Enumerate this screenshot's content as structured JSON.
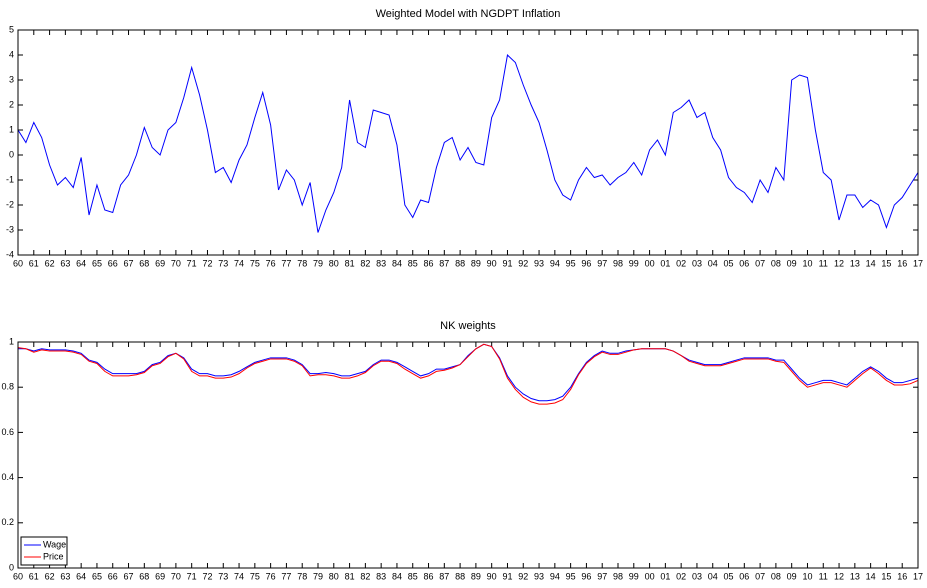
{
  "chart_data": [
    {
      "type": "line",
      "title": "Weighted Model with NGDPT Inflation",
      "color": "#0000ff",
      "x": [
        1960,
        1960.5,
        1961,
        1961.5,
        1962,
        1962.5,
        1963,
        1963.5,
        1964,
        1964.5,
        1965,
        1965.5,
        1966,
        1966.5,
        1967,
        1967.5,
        1968,
        1968.5,
        1969,
        1969.5,
        1970,
        1970.5,
        1971,
        1971.5,
        1972,
        1972.5,
        1973,
        1973.5,
        1974,
        1974.5,
        1975,
        1975.5,
        1976,
        1976.5,
        1977,
        1977.5,
        1978,
        1978.5,
        1979,
        1979.5,
        1980,
        1980.5,
        1981,
        1981.5,
        1982,
        1982.5,
        1983,
        1983.5,
        1984,
        1984.5,
        1985,
        1985.5,
        1986,
        1986.5,
        1987,
        1987.5,
        1988,
        1988.5,
        1989,
        1989.5,
        1990,
        1990.5,
        1991,
        1991.5,
        1992,
        1992.5,
        1993,
        1993.5,
        1994,
        1994.5,
        1995,
        1995.5,
        1996,
        1996.5,
        1997,
        1997.5,
        1998,
        1998.5,
        1999,
        1999.5,
        2000,
        2000.5,
        2001,
        2001.5,
        2002,
        2002.5,
        2003,
        2003.5,
        2004,
        2004.5,
        2005,
        2005.5,
        2006,
        2006.5,
        2007,
        2007.5,
        2008,
        2008.5,
        2009,
        2009.5,
        2010,
        2010.5,
        2011,
        2011.5,
        2012,
        2012.5,
        2013,
        2013.5,
        2014,
        2014.5,
        2015,
        2015.5,
        2016,
        2016.5,
        2017
      ],
      "values": [
        1.0,
        0.5,
        1.3,
        0.7,
        -0.4,
        -1.2,
        -0.9,
        -1.3,
        -0.1,
        -2.4,
        -1.2,
        -2.2,
        -2.3,
        -1.2,
        -0.8,
        0.0,
        1.1,
        0.3,
        0.0,
        1.0,
        1.3,
        2.3,
        3.5,
        2.4,
        1.0,
        -0.7,
        -0.5,
        -1.1,
        -0.2,
        0.4,
        1.5,
        2.5,
        1.2,
        -1.4,
        -0.6,
        -1.0,
        -2.0,
        -1.1,
        -3.1,
        -2.2,
        -1.5,
        -0.5,
        2.2,
        0.5,
        0.3,
        1.8,
        1.7,
        1.6,
        0.4,
        -2.0,
        -2.5,
        -1.8,
        -1.9,
        -0.5,
        0.5,
        0.7,
        -0.2,
        0.3,
        -0.3,
        -0.4,
        1.5,
        2.2,
        4.0,
        3.7,
        2.8,
        2.0,
        1.3,
        0.2,
        -1.0,
        -1.6,
        -1.8,
        -1.0,
        -0.5,
        -0.9,
        -0.8,
        -1.2,
        -0.9,
        -0.7,
        -0.3,
        -0.8,
        0.2,
        0.6,
        0.0,
        1.7,
        1.9,
        2.2,
        1.5,
        1.7,
        0.7,
        0.2,
        -0.9,
        -1.3,
        -1.5,
        -1.9,
        -1.0,
        -1.5,
        -0.5,
        -1.0,
        3.0,
        3.2,
        3.1,
        1.0,
        -0.7,
        -1.0,
        -2.6,
        -1.6,
        -1.6,
        -2.1,
        -1.8,
        -2.0,
        -2.9,
        -2.0,
        -1.7,
        -1.2,
        -0.7
      ],
      "xlim": [
        1960,
        2017
      ],
      "ylim": [
        -4,
        5
      ],
      "yticks": [
        -4,
        -3,
        -2,
        -1,
        0,
        1,
        2,
        3,
        4,
        5
      ],
      "xticks": [
        {
          "value": 1960,
          "label": "60"
        },
        {
          "value": 1961,
          "label": "61"
        },
        {
          "value": 1962,
          "label": "62"
        },
        {
          "value": 1963,
          "label": "63"
        },
        {
          "value": 1964,
          "label": "64"
        },
        {
          "value": 1965,
          "label": "65"
        },
        {
          "value": 1966,
          "label": "66"
        },
        {
          "value": 1967,
          "label": "67"
        },
        {
          "value": 1968,
          "label": "68"
        },
        {
          "value": 1969,
          "label": "69"
        },
        {
          "value": 1970,
          "label": "70"
        },
        {
          "value": 1971,
          "label": "71"
        },
        {
          "value": 1972,
          "label": "72"
        },
        {
          "value": 1973,
          "label": "73"
        },
        {
          "value": 1974,
          "label": "74"
        },
        {
          "value": 1975,
          "label": "75"
        },
        {
          "value": 1976,
          "label": "76"
        },
        {
          "value": 1977,
          "label": "77"
        },
        {
          "value": 1978,
          "label": "78"
        },
        {
          "value": 1979,
          "label": "79"
        },
        {
          "value": 1980,
          "label": "80"
        },
        {
          "value": 1981,
          "label": "81"
        },
        {
          "value": 1982,
          "label": "82"
        },
        {
          "value": 1983,
          "label": "83"
        },
        {
          "value": 1984,
          "label": "84"
        },
        {
          "value": 1985,
          "label": "85"
        },
        {
          "value": 1986,
          "label": "86"
        },
        {
          "value": 1987,
          "label": "87"
        },
        {
          "value": 1988,
          "label": "88"
        },
        {
          "value": 1989,
          "label": "89"
        },
        {
          "value": 1990,
          "label": "90"
        },
        {
          "value": 1991,
          "label": "91"
        },
        {
          "value": 1992,
          "label": "92"
        },
        {
          "value": 1993,
          "label": "93"
        },
        {
          "value": 1994,
          "label": "94"
        },
        {
          "value": 1995,
          "label": "95"
        },
        {
          "value": 1996,
          "label": "96"
        },
        {
          "value": 1997,
          "label": "97"
        },
        {
          "value": 1998,
          "label": "98"
        },
        {
          "value": 1999,
          "label": "99"
        },
        {
          "value": 2000,
          "label": "00"
        },
        {
          "value": 2001,
          "label": "01"
        },
        {
          "value": 2002,
          "label": "02"
        },
        {
          "value": 2003,
          "label": "03"
        },
        {
          "value": 2004,
          "label": "04"
        },
        {
          "value": 2005,
          "label": "05"
        },
        {
          "value": 2006,
          "label": "06"
        },
        {
          "value": 2007,
          "label": "07"
        },
        {
          "value": 2008,
          "label": "08"
        },
        {
          "value": 2009,
          "label": "09"
        },
        {
          "value": 2010,
          "label": "10"
        },
        {
          "value": 2011,
          "label": "11"
        },
        {
          "value": 2012,
          "label": "12"
        },
        {
          "value": 2013,
          "label": "13"
        },
        {
          "value": 2014,
          "label": "14"
        },
        {
          "value": 2015,
          "label": "15"
        },
        {
          "value": 2016,
          "label": "16"
        },
        {
          "value": 2017,
          "label": "17"
        }
      ],
      "grid": false
    },
    {
      "type": "line",
      "title": "NK weights",
      "legend": "lower left",
      "x": [
        1960,
        1960.5,
        1961,
        1961.5,
        1962,
        1962.5,
        1963,
        1963.5,
        1964,
        1964.5,
        1965,
        1965.5,
        1966,
        1966.5,
        1967,
        1967.5,
        1968,
        1968.5,
        1969,
        1969.5,
        1970,
        1970.5,
        1971,
        1971.5,
        1972,
        1972.5,
        1973,
        1973.5,
        1974,
        1974.5,
        1975,
        1975.5,
        1976,
        1976.5,
        1977,
        1977.5,
        1978,
        1978.5,
        1979,
        1979.5,
        1980,
        1980.5,
        1981,
        1981.5,
        1982,
        1982.5,
        1983,
        1983.5,
        1984,
        1984.5,
        1985,
        1985.5,
        1986,
        1986.5,
        1987,
        1987.5,
        1988,
        1988.5,
        1989,
        1989.5,
        1990,
        1990.5,
        1991,
        1991.5,
        1992,
        1992.5,
        1993,
        1993.5,
        1994,
        1994.5,
        1995,
        1995.5,
        1996,
        1996.5,
        1997,
        1997.5,
        1998,
        1998.5,
        1999,
        1999.5,
        2000,
        2000.5,
        2001,
        2001.5,
        2002,
        2002.5,
        2003,
        2003.5,
        2004,
        2004.5,
        2005,
        2005.5,
        2006,
        2006.5,
        2007,
        2007.5,
        2008,
        2008.5,
        2009,
        2009.5,
        2010,
        2010.5,
        2011,
        2011.5,
        2012,
        2012.5,
        2013,
        2013.5,
        2014,
        2014.5,
        2015,
        2015.5,
        2016,
        2016.5,
        2017
      ],
      "series": [
        {
          "name": "Wage",
          "color": "#0000ff",
          "values": [
            0.97,
            0.97,
            0.96,
            0.97,
            0.965,
            0.965,
            0.965,
            0.96,
            0.95,
            0.92,
            0.91,
            0.88,
            0.86,
            0.86,
            0.86,
            0.86,
            0.87,
            0.9,
            0.91,
            0.94,
            0.95,
            0.93,
            0.88,
            0.86,
            0.86,
            0.85,
            0.85,
            0.855,
            0.87,
            0.89,
            0.91,
            0.92,
            0.93,
            0.93,
            0.93,
            0.92,
            0.9,
            0.86,
            0.86,
            0.865,
            0.86,
            0.85,
            0.85,
            0.86,
            0.87,
            0.9,
            0.92,
            0.92,
            0.91,
            0.89,
            0.87,
            0.85,
            0.86,
            0.88,
            0.88,
            0.89,
            0.9,
            0.94,
            0.97,
            0.99,
            0.98,
            0.93,
            0.85,
            0.8,
            0.77,
            0.75,
            0.74,
            0.74,
            0.745,
            0.76,
            0.8,
            0.86,
            0.91,
            0.94,
            0.96,
            0.95,
            0.95,
            0.96,
            0.965,
            0.97,
            0.97,
            0.97,
            0.97,
            0.96,
            0.94,
            0.92,
            0.91,
            0.9,
            0.9,
            0.9,
            0.91,
            0.92,
            0.93,
            0.93,
            0.93,
            0.93,
            0.92,
            0.92,
            0.88,
            0.84,
            0.81,
            0.82,
            0.83,
            0.83,
            0.82,
            0.81,
            0.84,
            0.87,
            0.89,
            0.87,
            0.84,
            0.82,
            0.82,
            0.83,
            0.84
          ]
        },
        {
          "name": "Price",
          "color": "#ff0000",
          "values": [
            0.975,
            0.97,
            0.955,
            0.965,
            0.96,
            0.96,
            0.96,
            0.955,
            0.945,
            0.915,
            0.905,
            0.87,
            0.85,
            0.85,
            0.85,
            0.855,
            0.865,
            0.895,
            0.905,
            0.935,
            0.95,
            0.925,
            0.87,
            0.85,
            0.85,
            0.84,
            0.84,
            0.845,
            0.86,
            0.885,
            0.905,
            0.915,
            0.925,
            0.925,
            0.925,
            0.915,
            0.895,
            0.85,
            0.855,
            0.855,
            0.85,
            0.84,
            0.84,
            0.85,
            0.865,
            0.895,
            0.915,
            0.915,
            0.905,
            0.88,
            0.86,
            0.84,
            0.85,
            0.87,
            0.875,
            0.885,
            0.9,
            0.935,
            0.97,
            0.99,
            0.98,
            0.925,
            0.84,
            0.79,
            0.755,
            0.735,
            0.725,
            0.725,
            0.73,
            0.745,
            0.79,
            0.855,
            0.905,
            0.935,
            0.955,
            0.945,
            0.945,
            0.955,
            0.965,
            0.97,
            0.97,
            0.97,
            0.97,
            0.96,
            0.94,
            0.915,
            0.905,
            0.895,
            0.895,
            0.895,
            0.905,
            0.915,
            0.925,
            0.925,
            0.925,
            0.925,
            0.915,
            0.91,
            0.87,
            0.83,
            0.8,
            0.81,
            0.82,
            0.82,
            0.81,
            0.8,
            0.83,
            0.86,
            0.885,
            0.86,
            0.83,
            0.81,
            0.81,
            0.815,
            0.83
          ]
        }
      ],
      "xlim": [
        1960,
        2017
      ],
      "ylim": [
        0,
        1
      ],
      "yticks": [
        0,
        0.2,
        0.4,
        0.6,
        0.8,
        1
      ],
      "xticks": [
        {
          "value": 1960,
          "label": "60"
        },
        {
          "value": 1961,
          "label": "61"
        },
        {
          "value": 1962,
          "label": "62"
        },
        {
          "value": 1963,
          "label": "63"
        },
        {
          "value": 1964,
          "label": "64"
        },
        {
          "value": 1965,
          "label": "65"
        },
        {
          "value": 1966,
          "label": "66"
        },
        {
          "value": 1967,
          "label": "67"
        },
        {
          "value": 1968,
          "label": "68"
        },
        {
          "value": 1969,
          "label": "69"
        },
        {
          "value": 1970,
          "label": "70"
        },
        {
          "value": 1971,
          "label": "71"
        },
        {
          "value": 1972,
          "label": "72"
        },
        {
          "value": 1973,
          "label": "73"
        },
        {
          "value": 1974,
          "label": "74"
        },
        {
          "value": 1975,
          "label": "75"
        },
        {
          "value": 1976,
          "label": "76"
        },
        {
          "value": 1977,
          "label": "77"
        },
        {
          "value": 1978,
          "label": "78"
        },
        {
          "value": 1979,
          "label": "79"
        },
        {
          "value": 1980,
          "label": "80"
        },
        {
          "value": 1981,
          "label": "81"
        },
        {
          "value": 1982,
          "label": "82"
        },
        {
          "value": 1983,
          "label": "83"
        },
        {
          "value": 1984,
          "label": "84"
        },
        {
          "value": 1985,
          "label": "85"
        },
        {
          "value": 1986,
          "label": "86"
        },
        {
          "value": 1987,
          "label": "87"
        },
        {
          "value": 1988,
          "label": "88"
        },
        {
          "value": 1989,
          "label": "89"
        },
        {
          "value": 1990,
          "label": "90"
        },
        {
          "value": 1991,
          "label": "91"
        },
        {
          "value": 1992,
          "label": "92"
        },
        {
          "value": 1993,
          "label": "93"
        },
        {
          "value": 1994,
          "label": "94"
        },
        {
          "value": 1995,
          "label": "95"
        },
        {
          "value": 1996,
          "label": "96"
        },
        {
          "value": 1997,
          "label": "97"
        },
        {
          "value": 1998,
          "label": "98"
        },
        {
          "value": 1999,
          "label": "99"
        },
        {
          "value": 2000,
          "label": "00"
        },
        {
          "value": 2001,
          "label": "01"
        },
        {
          "value": 2002,
          "label": "02"
        },
        {
          "value": 2003,
          "label": "03"
        },
        {
          "value": 2004,
          "label": "04"
        },
        {
          "value": 2005,
          "label": "05"
        },
        {
          "value": 2006,
          "label": "06"
        },
        {
          "value": 2007,
          "label": "07"
        },
        {
          "value": 2008,
          "label": "08"
        },
        {
          "value": 2009,
          "label": "09"
        },
        {
          "value": 2010,
          "label": "10"
        },
        {
          "value": 2011,
          "label": "11"
        },
        {
          "value": 2012,
          "label": "12"
        },
        {
          "value": 2013,
          "label": "13"
        },
        {
          "value": 2014,
          "label": "14"
        },
        {
          "value": 2015,
          "label": "15"
        },
        {
          "value": 2016,
          "label": "16"
        },
        {
          "value": 2017,
          "label": "17"
        }
      ],
      "grid": false
    }
  ]
}
